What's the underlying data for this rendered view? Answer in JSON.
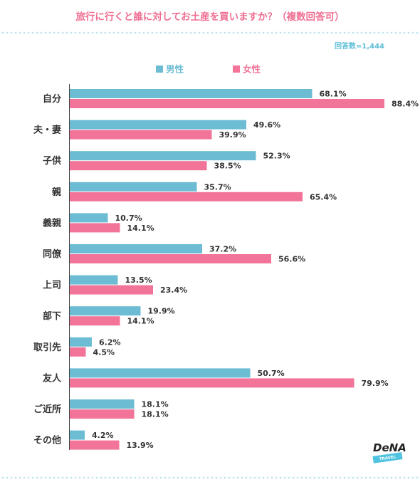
{
  "chart_data": {
    "type": "bar",
    "orientation": "horizontal",
    "title": "旅行に行くと誰に対してお土産を買いますか？（複数回答可）",
    "note": "回答数=1,444",
    "categories": [
      "自分",
      "夫・妻",
      "子供",
      "親",
      "義親",
      "同僚",
      "上司",
      "部下",
      "取引先",
      "友人",
      "ご近所",
      "その他"
    ],
    "series": [
      {
        "name": "男性",
        "color": "#6cbcd4",
        "values": [
          68.1,
          49.6,
          52.3,
          35.7,
          10.7,
          37.2,
          13.5,
          19.9,
          6.2,
          50.7,
          18.1,
          4.2
        ]
      },
      {
        "name": "女性",
        "color": "#f27499",
        "values": [
          88.4,
          39.9,
          38.5,
          65.4,
          14.1,
          56.6,
          23.4,
          14.1,
          4.5,
          79.9,
          18.1,
          13.9
        ]
      }
    ],
    "value_suffix": "%",
    "xlim": [
      0,
      100
    ],
    "legend_position": "top",
    "grid": false
  },
  "logo": {
    "text": "DeNA",
    "subtext": "TRAVEL"
  }
}
